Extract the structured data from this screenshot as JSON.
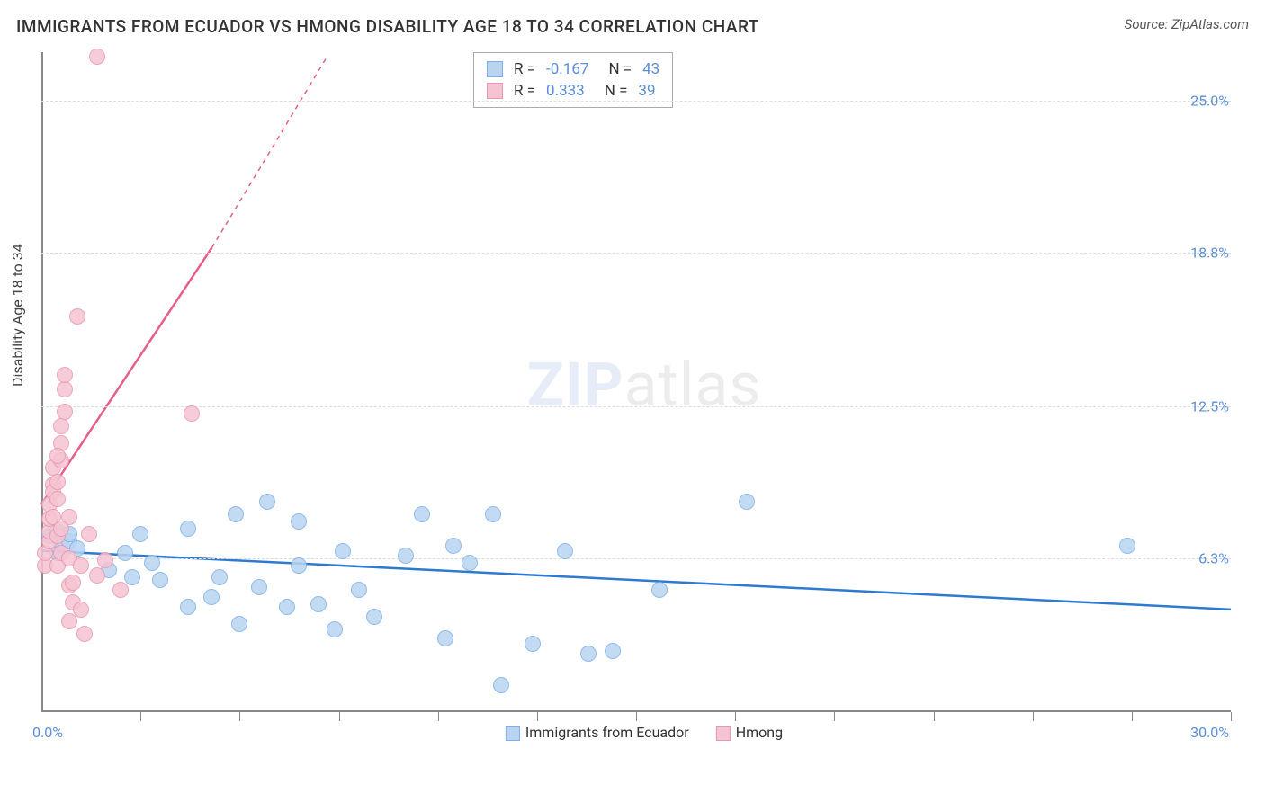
{
  "header": {
    "title": "IMMIGRANTS FROM ECUADOR VS HMONG DISABILITY AGE 18 TO 34 CORRELATION CHART",
    "source_prefix": "Source: ",
    "source": "ZipAtlas.com"
  },
  "watermark": {
    "zip": "ZIP",
    "atlas": "atlas"
  },
  "chart": {
    "type": "scatter",
    "y_axis_label": "Disability Age 18 to 34",
    "x_min": 0.0,
    "x_max": 30.0,
    "y_min": 0.0,
    "y_max": 27.0,
    "x_min_label": "0.0%",
    "x_max_label": "30.0%",
    "y_gridlines": [
      {
        "value": 6.3,
        "label": "6.3%"
      },
      {
        "value": 12.5,
        "label": "12.5%"
      },
      {
        "value": 18.8,
        "label": "18.8%"
      },
      {
        "value": 25.0,
        "label": "25.0%"
      }
    ],
    "x_ticks": [
      2.5,
      5,
      7.5,
      10,
      12.5,
      15,
      17.5,
      20,
      22.5,
      25,
      27.5,
      30
    ],
    "background_color": "#ffffff",
    "grid_color": "#dddddd",
    "axis_color": "#888888",
    "axis_label_color": "#5b8fd6",
    "marker_radius": 9,
    "series": [
      {
        "name": "Immigrants from Ecuador",
        "fill": "#b9d4f1",
        "stroke": "#7fb0e6",
        "trend_color": "#2e7ad1",
        "trend_dash": "none",
        "trend": {
          "x1": 0.0,
          "y1": 6.6,
          "x2": 30.0,
          "y2": 4.2
        },
        "r": -0.167,
        "n": 43,
        "points": [
          [
            0.2,
            7.2
          ],
          [
            0.4,
            6.5
          ],
          [
            0.4,
            7.4
          ],
          [
            0.5,
            6.9
          ],
          [
            0.7,
            7.0
          ],
          [
            0.7,
            7.3
          ],
          [
            0.9,
            6.7
          ],
          [
            1.7,
            5.8
          ],
          [
            2.1,
            6.5
          ],
          [
            2.3,
            5.5
          ],
          [
            2.5,
            7.3
          ],
          [
            2.8,
            6.1
          ],
          [
            3.0,
            5.4
          ],
          [
            3.7,
            4.3
          ],
          [
            3.7,
            7.5
          ],
          [
            4.3,
            4.7
          ],
          [
            4.5,
            5.5
          ],
          [
            4.9,
            8.1
          ],
          [
            5.0,
            3.6
          ],
          [
            5.5,
            5.1
          ],
          [
            5.7,
            8.6
          ],
          [
            6.2,
            4.3
          ],
          [
            6.5,
            7.8
          ],
          [
            6.5,
            6.0
          ],
          [
            7.0,
            4.4
          ],
          [
            7.4,
            3.4
          ],
          [
            7.6,
            6.6
          ],
          [
            8.0,
            5.0
          ],
          [
            8.4,
            3.9
          ],
          [
            9.2,
            6.4
          ],
          [
            9.6,
            8.1
          ],
          [
            10.2,
            3.0
          ],
          [
            10.4,
            6.8
          ],
          [
            10.8,
            6.1
          ],
          [
            11.4,
            8.1
          ],
          [
            11.6,
            1.1
          ],
          [
            12.4,
            2.8
          ],
          [
            13.2,
            6.6
          ],
          [
            13.8,
            2.4
          ],
          [
            15.6,
            5.0
          ],
          [
            17.8,
            8.6
          ],
          [
            27.4,
            6.8
          ],
          [
            14.4,
            2.5
          ]
        ]
      },
      {
        "name": "Hmong",
        "fill": "#f5c4d2",
        "stroke": "#ea96b0",
        "trend_color": "#e65f87",
        "trend_dash": "solid_then_dashed",
        "trend": {
          "x1": 0.0,
          "y1": 8.5,
          "x2": 4.3,
          "y2": 19.0
        },
        "trend_dashed_ext": {
          "x1": 4.3,
          "y1": 19.0,
          "x2": 7.2,
          "y2": 26.8
        },
        "r": 0.333,
        "n": 39,
        "points": [
          [
            0.1,
            6.0
          ],
          [
            0.1,
            6.5
          ],
          [
            0.2,
            7.0
          ],
          [
            0.2,
            7.4
          ],
          [
            0.2,
            7.9
          ],
          [
            0.2,
            8.5
          ],
          [
            0.3,
            9.3
          ],
          [
            0.3,
            8.0
          ],
          [
            0.3,
            9.0
          ],
          [
            0.3,
            10.0
          ],
          [
            0.4,
            6.0
          ],
          [
            0.4,
            7.2
          ],
          [
            0.4,
            8.7
          ],
          [
            0.4,
            9.4
          ],
          [
            0.5,
            10.3
          ],
          [
            0.5,
            11.0
          ],
          [
            0.5,
            11.7
          ],
          [
            0.5,
            6.5
          ],
          [
            0.6,
            12.3
          ],
          [
            0.6,
            13.2
          ],
          [
            0.6,
            13.8
          ],
          [
            0.7,
            5.2
          ],
          [
            0.7,
            6.3
          ],
          [
            0.7,
            8.0
          ],
          [
            0.7,
            3.7
          ],
          [
            0.8,
            4.5
          ],
          [
            0.8,
            5.3
          ],
          [
            0.9,
            16.2
          ],
          [
            1.0,
            6.0
          ],
          [
            1.0,
            4.2
          ],
          [
            1.1,
            3.2
          ],
          [
            1.2,
            7.3
          ],
          [
            1.4,
            5.6
          ],
          [
            1.4,
            26.8
          ],
          [
            1.6,
            6.2
          ],
          [
            2.0,
            5.0
          ],
          [
            3.8,
            12.2
          ],
          [
            0.4,
            10.5
          ],
          [
            0.5,
            7.5
          ]
        ]
      }
    ],
    "legend_bottom": [
      {
        "swatch_fill": "#b9d4f1",
        "swatch_stroke": "#7fb0e6",
        "label": "Immigrants from Ecuador"
      },
      {
        "swatch_fill": "#f5c4d2",
        "swatch_stroke": "#ea96b0",
        "label": "Hmong"
      }
    ],
    "stat_labels": {
      "r": "R =",
      "n": "N ="
    }
  }
}
